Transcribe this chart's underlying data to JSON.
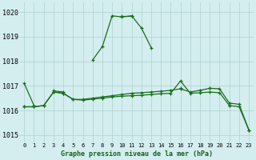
{
  "title": "Graphe pression niveau de la mer (hPa)",
  "background_color": "#d4eef0",
  "grid_color": "#b0d0d0",
  "line_color": "#1a6e1a",
  "x_values": [
    0,
    1,
    2,
    3,
    4,
    5,
    6,
    7,
    8,
    9,
    10,
    11,
    12,
    13,
    14,
    15,
    16,
    17,
    18,
    19,
    20,
    21,
    22,
    23
  ],
  "series": [
    [
      1017.1,
      1016.2,
      null,
      1016.8,
      1016.75,
      null,
      null,
      1018.05,
      1018.6,
      1019.85,
      1019.8,
      1019.85,
      1019.35,
      1018.55,
      null,
      null,
      1016.9,
      null,
      null,
      1016.9,
      null,
      1016.2,
      null,
      null
    ],
    [
      null,
      null,
      null,
      null,
      null,
      null,
      null,
      null,
      null,
      null,
      1019.85,
      1019.85,
      null,
      null,
      null,
      null,
      null,
      null,
      null,
      null,
      null,
      null,
      null,
      null
    ],
    [
      1016.15,
      1016.15,
      1016.2,
      1016.75,
      1016.7,
      1016.45,
      1016.45,
      1016.5,
      1016.55,
      1016.6,
      1016.65,
      1016.7,
      1016.72,
      1016.75,
      1016.78,
      1016.82,
      1016.88,
      1016.75,
      1016.82,
      1016.9,
      1016.88,
      1016.3,
      1016.25,
      1015.2
    ],
    [
      1016.15,
      1016.15,
      1016.2,
      1016.75,
      1016.7,
      1016.45,
      1016.42,
      1016.46,
      1016.5,
      1016.55,
      1016.58,
      1016.6,
      1016.62,
      1016.65,
      1016.68,
      1016.7,
      1017.2,
      1016.7,
      1016.72,
      1016.75,
      1016.72,
      1016.2,
      1016.15,
      1015.2
    ]
  ],
  "ylim": [
    1014.7,
    1020.4
  ],
  "yticks": [
    1015,
    1016,
    1017,
    1018,
    1019,
    1020
  ],
  "xticks": [
    0,
    1,
    2,
    3,
    4,
    5,
    6,
    7,
    8,
    9,
    10,
    11,
    12,
    13,
    14,
    15,
    16,
    17,
    18,
    19,
    20,
    21,
    22,
    23
  ],
  "marker": "+",
  "markersize": 3.5,
  "linewidth": 0.9
}
